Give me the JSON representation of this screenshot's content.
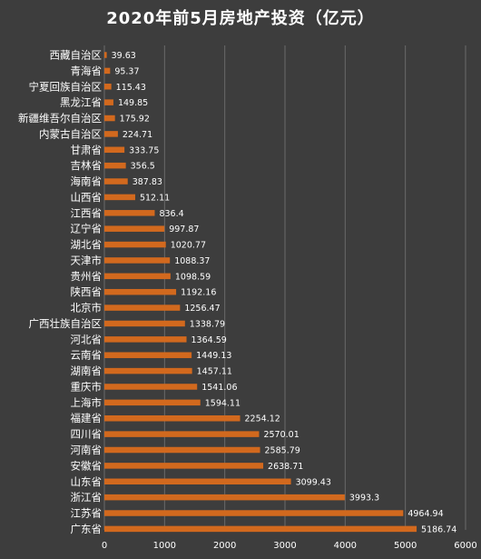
{
  "chart_data": {
    "type": "bar",
    "orientation": "horizontal",
    "title": "2020年前5月房地产投资（亿元）",
    "categories": [
      "西藏自治区",
      "青海省",
      "宁夏回族自治区",
      "黑龙江省",
      "新疆维吾尔自治区",
      "内蒙古自治区",
      "甘肃省",
      "吉林省",
      "海南省",
      "山西省",
      "江西省",
      "辽宁省",
      "湖北省",
      "天津市",
      "贵州省",
      "陕西省",
      "北京市",
      "广西壮族自治区",
      "河北省",
      "云南省",
      "湖南省",
      "重庆市",
      "上海市",
      "福建省",
      "四川省",
      "河南省",
      "安徽省",
      "山东省",
      "浙江省",
      "江苏省",
      "广东省"
    ],
    "values": [
      39.63,
      95.37,
      115.43,
      149.85,
      175.92,
      224.71,
      333.75,
      356.5,
      387.83,
      512.11,
      836.4,
      997.87,
      1020.77,
      1088.37,
      1098.59,
      1192.16,
      1256.47,
      1338.79,
      1364.59,
      1449.13,
      1457.11,
      1541.06,
      1594.11,
      2254.12,
      2570.01,
      2585.79,
      2638.71,
      3099.43,
      3993.3,
      4964.94,
      5186.74
    ],
    "value_labels": [
      "39.63",
      "95.37",
      "115.43",
      "149.85",
      "175.92",
      "224.71",
      "333.75",
      "356.5",
      "387.83",
      "512.11",
      "836.4",
      "997.87",
      "1020.77",
      "1088.37",
      "1098.59",
      "1192.16",
      "1256.47",
      "1338.79",
      "1364.59",
      "1449.13",
      "1457.11",
      "1541.06",
      "1594.11",
      "2254.12",
      "2570.01",
      "2585.79",
      "2638.71",
      "3099.43",
      "3993.3",
      "4964.94",
      "5186.74"
    ],
    "xlim": [
      0,
      6000
    ],
    "xticks": [
      "0",
      "1000",
      "2000",
      "3000",
      "4000",
      "5000",
      "6000"
    ],
    "xtick_values": [
      0,
      1000,
      2000,
      3000,
      4000,
      5000,
      6000
    ],
    "grid": true,
    "bar_color": "#d2691e",
    "background": "#3d3d3d",
    "grid_color": "#6a6a6a",
    "text_color": "#ffffff"
  }
}
